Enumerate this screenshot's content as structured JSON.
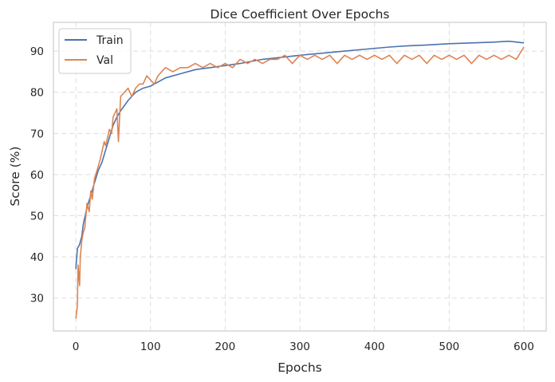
{
  "chart_data": {
    "type": "line",
    "title": "Dice Coefficient Over Epochs",
    "xlabel": "Epochs",
    "ylabel": "Score (%)",
    "xlim": [
      -30,
      630
    ],
    "ylim": [
      22,
      97
    ],
    "xticks": [
      0,
      100,
      200,
      300,
      400,
      500,
      600
    ],
    "yticks": [
      30,
      40,
      50,
      60,
      70,
      80,
      90
    ],
    "grid": true,
    "legend_position": "top-left",
    "series": [
      {
        "name": "Train",
        "color": "#4c72b0",
        "points": [
          [
            0,
            37
          ],
          [
            2,
            42
          ],
          [
            5,
            43
          ],
          [
            8,
            45
          ],
          [
            10,
            48
          ],
          [
            15,
            52
          ],
          [
            20,
            55
          ],
          [
            25,
            58
          ],
          [
            30,
            61
          ],
          [
            35,
            63
          ],
          [
            40,
            66
          ],
          [
            45,
            69
          ],
          [
            50,
            72
          ],
          [
            55,
            74
          ],
          [
            60,
            75.5
          ],
          [
            70,
            78
          ],
          [
            80,
            80
          ],
          [
            90,
            81
          ],
          [
            100,
            81.5
          ],
          [
            110,
            82.5
          ],
          [
            120,
            83.5
          ],
          [
            140,
            84.5
          ],
          [
            160,
            85.5
          ],
          [
            180,
            86
          ],
          [
            200,
            86.5
          ],
          [
            220,
            87
          ],
          [
            250,
            88
          ],
          [
            275,
            88.5
          ],
          [
            300,
            89
          ],
          [
            330,
            89.5
          ],
          [
            360,
            90
          ],
          [
            390,
            90.5
          ],
          [
            420,
            91
          ],
          [
            445,
            91.3
          ],
          [
            470,
            91.5
          ],
          [
            500,
            91.8
          ],
          [
            530,
            92
          ],
          [
            560,
            92.2
          ],
          [
            580,
            92.4
          ],
          [
            600,
            92
          ]
        ]
      },
      {
        "name": "Val",
        "color": "#dd8452",
        "points": [
          [
            0,
            25
          ],
          [
            2,
            28
          ],
          [
            3,
            38
          ],
          [
            5,
            33
          ],
          [
            6,
            40
          ],
          [
            8,
            44
          ],
          [
            10,
            46
          ],
          [
            12,
            47
          ],
          [
            15,
            53
          ],
          [
            18,
            51
          ],
          [
            20,
            56
          ],
          [
            22,
            54
          ],
          [
            25,
            59
          ],
          [
            30,
            62
          ],
          [
            33,
            64
          ],
          [
            38,
            68
          ],
          [
            40,
            67
          ],
          [
            45,
            71
          ],
          [
            48,
            70
          ],
          [
            50,
            74
          ],
          [
            55,
            76
          ],
          [
            57,
            68
          ],
          [
            60,
            79
          ],
          [
            65,
            80
          ],
          [
            70,
            81
          ],
          [
            75,
            79
          ],
          [
            80,
            81
          ],
          [
            85,
            82
          ],
          [
            90,
            82
          ],
          [
            95,
            84
          ],
          [
            100,
            83
          ],
          [
            105,
            82
          ],
          [
            110,
            84
          ],
          [
            115,
            85
          ],
          [
            120,
            86
          ],
          [
            130,
            85
          ],
          [
            140,
            86
          ],
          [
            150,
            86
          ],
          [
            160,
            87
          ],
          [
            170,
            86
          ],
          [
            180,
            87
          ],
          [
            190,
            86
          ],
          [
            200,
            87
          ],
          [
            210,
            86
          ],
          [
            220,
            88
          ],
          [
            230,
            87
          ],
          [
            240,
            88
          ],
          [
            250,
            87
          ],
          [
            260,
            88
          ],
          [
            270,
            88
          ],
          [
            280,
            89
          ],
          [
            290,
            87
          ],
          [
            300,
            89
          ],
          [
            310,
            88
          ],
          [
            320,
            89
          ],
          [
            330,
            88
          ],
          [
            340,
            89
          ],
          [
            350,
            87
          ],
          [
            360,
            89
          ],
          [
            370,
            88
          ],
          [
            380,
            89
          ],
          [
            390,
            88
          ],
          [
            400,
            89
          ],
          [
            410,
            88
          ],
          [
            420,
            89
          ],
          [
            430,
            87
          ],
          [
            440,
            89
          ],
          [
            450,
            88
          ],
          [
            460,
            89
          ],
          [
            470,
            87
          ],
          [
            480,
            89
          ],
          [
            490,
            88
          ],
          [
            500,
            89
          ],
          [
            510,
            88
          ],
          [
            520,
            89
          ],
          [
            530,
            87
          ],
          [
            540,
            89
          ],
          [
            550,
            88
          ],
          [
            560,
            89
          ],
          [
            570,
            88
          ],
          [
            580,
            89
          ],
          [
            590,
            88
          ],
          [
            600,
            91
          ]
        ]
      }
    ]
  }
}
